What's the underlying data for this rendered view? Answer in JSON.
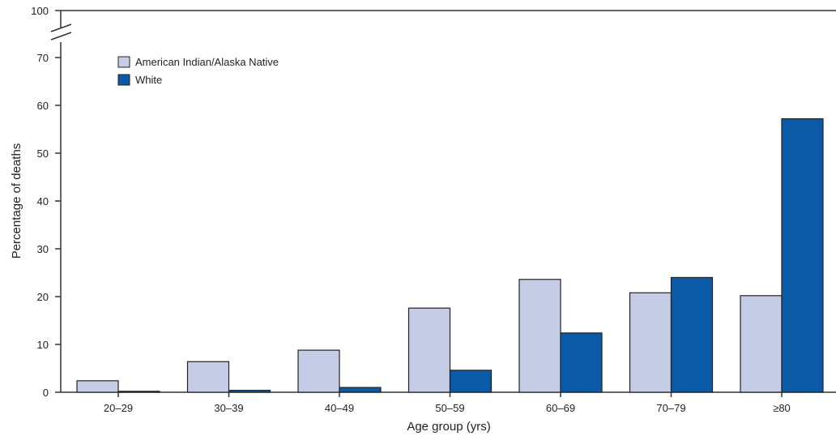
{
  "chart_data": {
    "type": "bar",
    "xlabel": "Age group (yrs)",
    "ylabel": "Percentage of deaths",
    "categories": [
      "20–29",
      "30–39",
      "40–49",
      "50–59",
      "60–69",
      "70–79",
      "≥80"
    ],
    "series": [
      {
        "name": "American Indian/Alaska Native",
        "color": "#c5cce6",
        "values": [
          2.4,
          6.4,
          8.8,
          17.6,
          23.6,
          20.8,
          20.2
        ]
      },
      {
        "name": "White",
        "color": "#0a5aa8",
        "values": [
          0.2,
          0.4,
          1.0,
          4.6,
          12.4,
          24.0,
          57.2
        ]
      }
    ],
    "yticks": [
      "0",
      "10",
      "20",
      "30",
      "40",
      "50",
      "60",
      "70",
      "100"
    ],
    "ylim": [
      0,
      100
    ],
    "axis_break": true,
    "legend_position": "top-left",
    "grid": false
  }
}
